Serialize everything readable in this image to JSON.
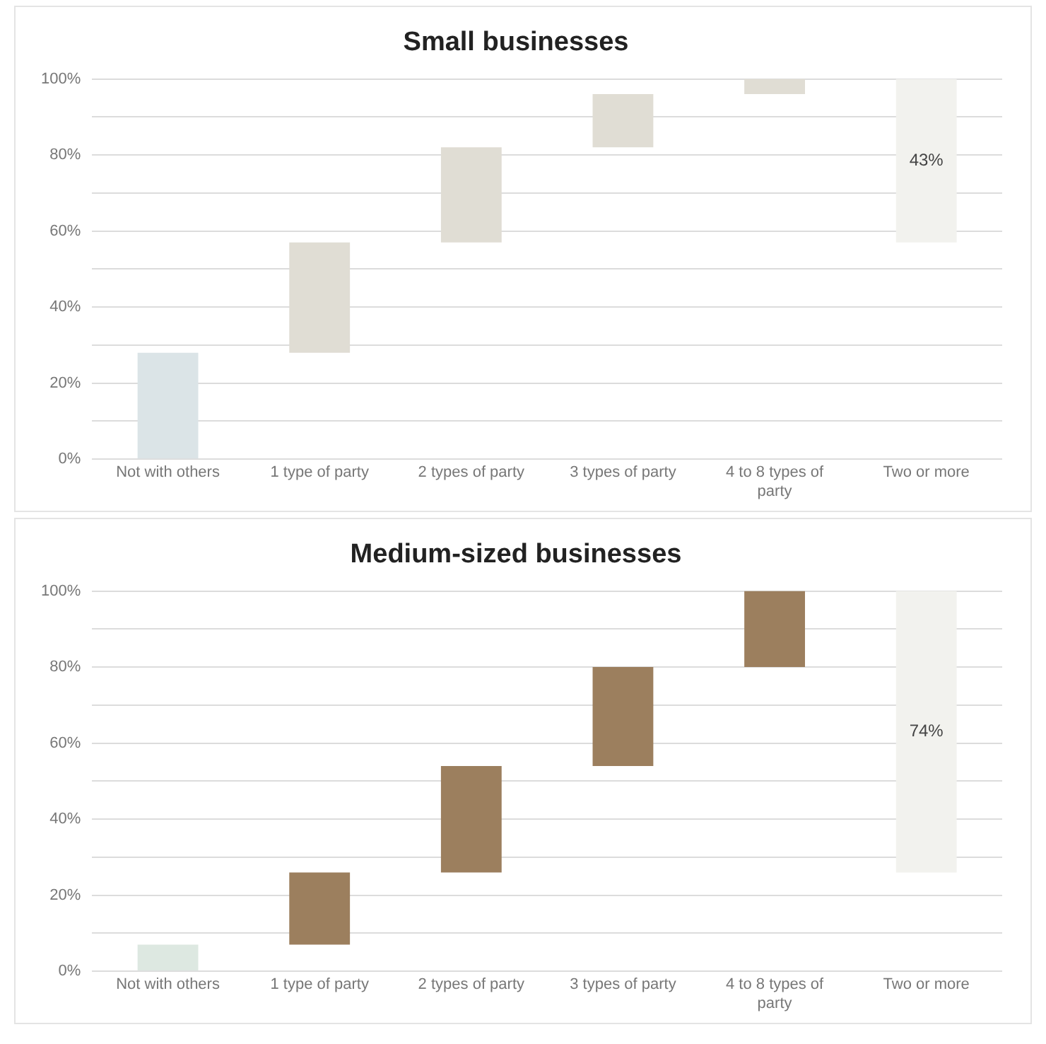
{
  "chart_data": [
    {
      "type": "bar",
      "title": "Small businesses",
      "categories": [
        "Not with others",
        "1 type of party",
        "2 types of party",
        "3 types of party",
        "4 to 8 types of party",
        "Two or more"
      ],
      "values": [
        28,
        29,
        25,
        14,
        4,
        43
      ],
      "base": [
        0,
        28,
        57,
        82,
        96,
        57
      ],
      "colors": [
        "#dbe4e7",
        "#e0ddd4",
        "#e0ddd4",
        "#e0ddd4",
        "#e0ddd4",
        "#f2f2ee"
      ],
      "value_labels": [
        null,
        null,
        null,
        null,
        null,
        "43%"
      ],
      "ylim": [
        0,
        100
      ],
      "yticks": [
        {
          "value": 0,
          "label": "0%"
        },
        {
          "value": 10,
          "label": null
        },
        {
          "value": 20,
          "label": "20%"
        },
        {
          "value": 30,
          "label": null
        },
        {
          "value": 40,
          "label": "40%"
        },
        {
          "value": 50,
          "label": null
        },
        {
          "value": 60,
          "label": "60%"
        },
        {
          "value": 70,
          "label": null
        },
        {
          "value": 80,
          "label": "80%"
        },
        {
          "value": 90,
          "label": null
        },
        {
          "value": 100,
          "label": "100%"
        }
      ],
      "grid": "y"
    },
    {
      "type": "bar",
      "title": "Medium-sized businesses",
      "categories": [
        "Not with others",
        "1 type of party",
        "2 types of party",
        "3 types of party",
        "4 to 8 types of party",
        "Two or more"
      ],
      "values": [
        7,
        19,
        28,
        26,
        20,
        74
      ],
      "base": [
        0,
        7,
        26,
        54,
        80,
        26
      ],
      "colors": [
        "#dde8e1",
        "#9c7f5e",
        "#9c7f5e",
        "#9c7f5e",
        "#9c7f5e",
        "#f2f2ee"
      ],
      "value_labels": [
        null,
        null,
        null,
        null,
        null,
        "74%"
      ],
      "ylim": [
        0,
        100
      ],
      "yticks": [
        {
          "value": 0,
          "label": "0%"
        },
        {
          "value": 10,
          "label": null
        },
        {
          "value": 20,
          "label": "20%"
        },
        {
          "value": 30,
          "label": null
        },
        {
          "value": 40,
          "label": "40%"
        },
        {
          "value": 50,
          "label": null
        },
        {
          "value": 60,
          "label": "60%"
        },
        {
          "value": 70,
          "label": null
        },
        {
          "value": 80,
          "label": "80%"
        },
        {
          "value": 90,
          "label": null
        },
        {
          "value": 100,
          "label": "100%"
        }
      ],
      "grid": "y"
    }
  ]
}
